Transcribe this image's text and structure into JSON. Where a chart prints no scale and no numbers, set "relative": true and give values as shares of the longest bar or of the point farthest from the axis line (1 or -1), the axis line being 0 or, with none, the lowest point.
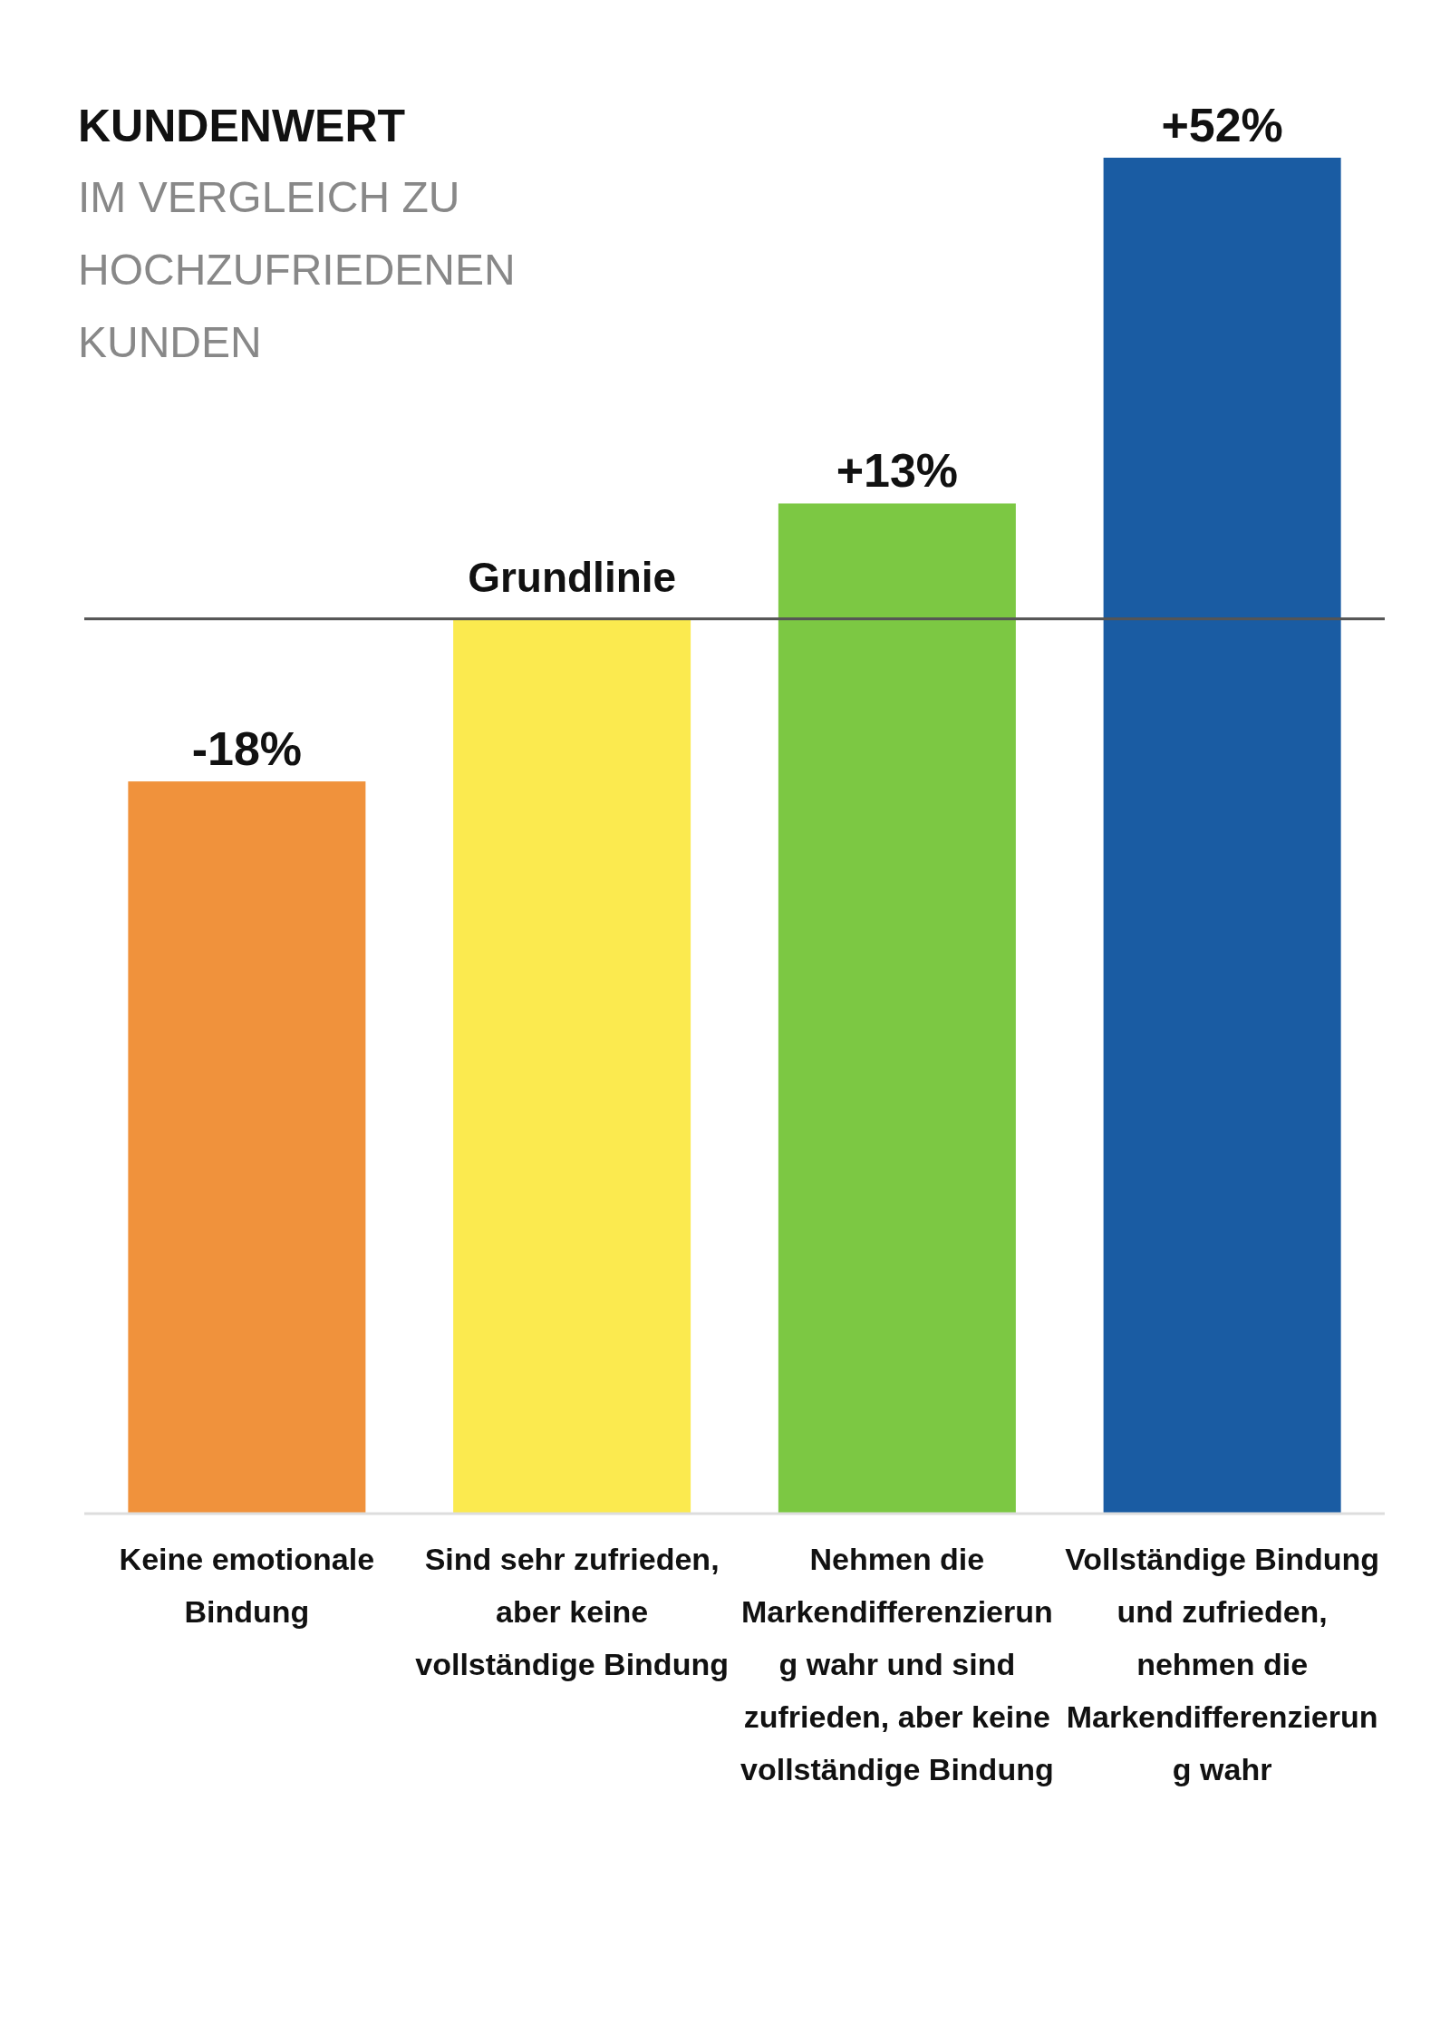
{
  "chart_data": {
    "type": "bar",
    "title": "KUNDENWERT",
    "subtitle": "IM VERGLEICH ZU HOCHZUFRIEDENEN KUNDEN",
    "categories": [
      "Keine emotionale Bindung",
      "Sind sehr zufrieden, aber keine vollständige Bindung",
      "Nehmen die Markendifferenzierung wahr und sind zufrieden, aber keine vollständige Bindung",
      "Vollständige Bindung und zufrieden, nehmen die Markendifferenzierung wahr"
    ],
    "values": [
      0.54,
      0.66,
      0.745,
      1
    ],
    "relative": true,
    "colors": [
      "#f0923c",
      "#fbea4f",
      "#7cc843",
      "#1a5ca3"
    ],
    "ref_lines": [
      {
        "axis": "y",
        "value": 0.66,
        "label": "Grundlinie",
        "color": "#555555"
      }
    ],
    "annotations": [
      {
        "text": "-18%",
        "x": "Keine emotionale Bindung",
        "y": 0.54
      },
      {
        "text": "+13%",
        "x": "Nehmen die Markendifferenzierung wahr und sind zufrieden, aber keine vollständige Bindung",
        "y": 0.745
      },
      {
        "text": "+52%",
        "x": "Vollständige Bindung und zufrieden, nehmen die Markendifferenzierung wahr",
        "y": 1
      }
    ]
  }
}
